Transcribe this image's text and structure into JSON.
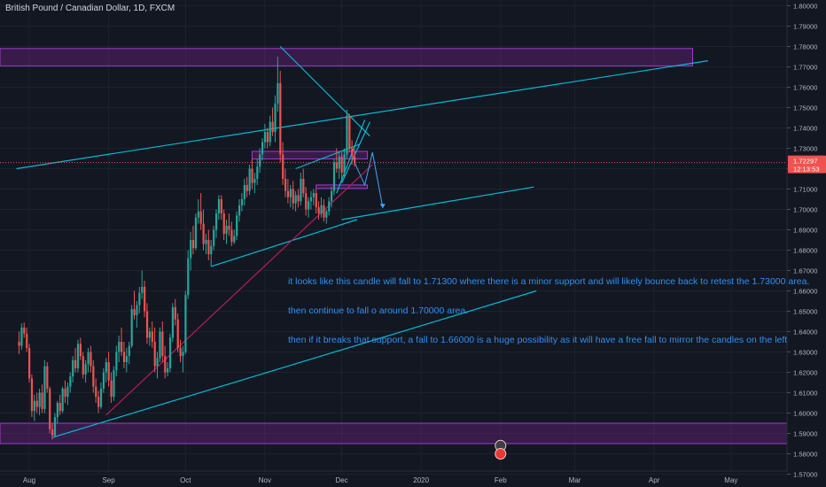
{
  "header": {
    "title": "British Pound / Canadian Dollar, 1D, FXCM"
  },
  "annotation": {
    "lines": [
      "it looks like this candle will fall to 1.71300 where there is a minor support and will likely bounce back to retest the 1.73000 area.",
      "then continue to fall o around 1.70000 area.",
      "then if it breaks that support, a fall to 1.66000 is a huge possibility as it will have a free fall to mirror the candles on the left"
    ]
  },
  "chart_data": {
    "type": "candlestick",
    "symbol": "British Pound / Canadian Dollar",
    "interval": "1D",
    "source": "FXCM",
    "ylim": [
      1.57,
      1.8
    ],
    "y_ticks": [
      "1.80000",
      "1.79000",
      "1.78000",
      "1.77000",
      "1.76000",
      "1.75000",
      "1.74000",
      "1.73000",
      "1.72000",
      "1.71000",
      "1.70000",
      "1.69000",
      "1.68000",
      "1.67000",
      "1.66000",
      "1.65000",
      "1.64000",
      "1.63000",
      "1.62000",
      "1.61000",
      "1.60000",
      "1.59000",
      "1.58000",
      "1.57000"
    ],
    "x_ticks": [
      "Aug",
      "Sep",
      "Oct",
      "Nov",
      "Dec",
      "2020",
      "Feb",
      "Mar",
      "Apr",
      "May"
    ],
    "x_tick_days": [
      0,
      31,
      61,
      92,
      122,
      153,
      184,
      213,
      244,
      274
    ],
    "last_price": "1.72297",
    "countdown": "12:13:53",
    "colors": {
      "up": "#26a69a",
      "down": "#ef5350",
      "trendline": "#00bcd4",
      "support": "#b71c5f",
      "zone": "#9c27b0",
      "arrow": "#42a5f5",
      "background": "#131722"
    },
    "candles": [
      [
        -4,
        1.635,
        1.64,
        1.629,
        1.633
      ],
      [
        -3,
        1.633,
        1.644,
        1.631,
        1.642
      ],
      [
        -2,
        1.642,
        1.6445,
        1.637,
        1.639
      ],
      [
        -1,
        1.639,
        1.642,
        1.63,
        1.632
      ],
      [
        0,
        1.632,
        1.634,
        1.615,
        1.617
      ],
      [
        1,
        1.617,
        1.619,
        1.598,
        1.601
      ],
      [
        2,
        1.601,
        1.609,
        1.596,
        1.606
      ],
      [
        3,
        1.606,
        1.61,
        1.6,
        1.603
      ],
      [
        4,
        1.603,
        1.612,
        1.599,
        1.61
      ],
      [
        5,
        1.61,
        1.614,
        1.6,
        1.602
      ],
      [
        6,
        1.602,
        1.626,
        1.6,
        1.623
      ],
      [
        7,
        1.623,
        1.625,
        1.61,
        1.612
      ],
      [
        8,
        1.612,
        1.613,
        1.59,
        1.592
      ],
      [
        9,
        1.592,
        1.595,
        1.587,
        1.589
      ],
      [
        10,
        1.589,
        1.6,
        1.588,
        1.598
      ],
      [
        11,
        1.598,
        1.606,
        1.595,
        1.605
      ],
      [
        12,
        1.605,
        1.609,
        1.599,
        1.601
      ],
      [
        13,
        1.601,
        1.613,
        1.6,
        1.612
      ],
      [
        14,
        1.612,
        1.616,
        1.605,
        1.608
      ],
      [
        15,
        1.608,
        1.615,
        1.604,
        1.613
      ],
      [
        16,
        1.613,
        1.62,
        1.61,
        1.618
      ],
      [
        17,
        1.618,
        1.628,
        1.615,
        1.626
      ],
      [
        18,
        1.626,
        1.632,
        1.62,
        1.622
      ],
      [
        19,
        1.622,
        1.636,
        1.62,
        1.634
      ],
      [
        20,
        1.634,
        1.637,
        1.626,
        1.628
      ],
      [
        21,
        1.628,
        1.63,
        1.617,
        1.619
      ],
      [
        22,
        1.619,
        1.626,
        1.615,
        1.624
      ],
      [
        23,
        1.624,
        1.632,
        1.62,
        1.63
      ],
      [
        24,
        1.63,
        1.633,
        1.62,
        1.623
      ],
      [
        25,
        1.623,
        1.626,
        1.61,
        1.613
      ],
      [
        26,
        1.613,
        1.617,
        1.605,
        1.608
      ],
      [
        27,
        1.608,
        1.611,
        1.6,
        1.603
      ],
      [
        28,
        1.603,
        1.615,
        1.602,
        1.612
      ],
      [
        29,
        1.612,
        1.622,
        1.61,
        1.62
      ],
      [
        30,
        1.62,
        1.627,
        1.615,
        1.625
      ],
      [
        31,
        1.625,
        1.63,
        1.613,
        1.616
      ],
      [
        32,
        1.616,
        1.62,
        1.605,
        1.608
      ],
      [
        33,
        1.608,
        1.623,
        1.606,
        1.621
      ],
      [
        34,
        1.621,
        1.633,
        1.618,
        1.63
      ],
      [
        35,
        1.63,
        1.638,
        1.625,
        1.635
      ],
      [
        36,
        1.635,
        1.642,
        1.628,
        1.63
      ],
      [
        37,
        1.63,
        1.635,
        1.622,
        1.625
      ],
      [
        38,
        1.625,
        1.632,
        1.62,
        1.628
      ],
      [
        39,
        1.628,
        1.635,
        1.624,
        1.633
      ],
      [
        40,
        1.633,
        1.653,
        1.632,
        1.651
      ],
      [
        41,
        1.651,
        1.66,
        1.646,
        1.648
      ],
      [
        42,
        1.648,
        1.655,
        1.642,
        1.653
      ],
      [
        43,
        1.653,
        1.662,
        1.649,
        1.659
      ],
      [
        44,
        1.659,
        1.67,
        1.656,
        1.662
      ],
      [
        45,
        1.662,
        1.665,
        1.647,
        1.65
      ],
      [
        46,
        1.65,
        1.654,
        1.634,
        1.637
      ],
      [
        47,
        1.637,
        1.642,
        1.633,
        1.64
      ],
      [
        48,
        1.64,
        1.645,
        1.632,
        1.635
      ],
      [
        49,
        1.635,
        1.642,
        1.62,
        1.623
      ],
      [
        50,
        1.623,
        1.63,
        1.617,
        1.627
      ],
      [
        51,
        1.627,
        1.642,
        1.625,
        1.64
      ],
      [
        52,
        1.64,
        1.645,
        1.625,
        1.628
      ],
      [
        53,
        1.628,
        1.633,
        1.617,
        1.62
      ],
      [
        54,
        1.62,
        1.625,
        1.618,
        1.622
      ],
      [
        55,
        1.622,
        1.639,
        1.62,
        1.637
      ],
      [
        56,
        1.637,
        1.654,
        1.635,
        1.652
      ],
      [
        57,
        1.652,
        1.656,
        1.643,
        1.646
      ],
      [
        58,
        1.646,
        1.649,
        1.63,
        1.632
      ],
      [
        59,
        1.632,
        1.636,
        1.625,
        1.628
      ],
      [
        60,
        1.628,
        1.633,
        1.62,
        1.63
      ],
      [
        61,
        1.63,
        1.66,
        1.629,
        1.658
      ],
      [
        62,
        1.658,
        1.68,
        1.656,
        1.676
      ],
      [
        63,
        1.676,
        1.689,
        1.67,
        1.685
      ],
      [
        64,
        1.685,
        1.692,
        1.678,
        1.681
      ],
      [
        65,
        1.681,
        1.698,
        1.68,
        1.696
      ],
      [
        66,
        1.696,
        1.705,
        1.693,
        1.699
      ],
      [
        67,
        1.699,
        1.708,
        1.69,
        1.693
      ],
      [
        68,
        1.693,
        1.7,
        1.68,
        1.683
      ],
      [
        69,
        1.683,
        1.688,
        1.678,
        1.685
      ],
      [
        70,
        1.685,
        1.69,
        1.675,
        1.678
      ],
      [
        71,
        1.678,
        1.685,
        1.672,
        1.682
      ],
      [
        72,
        1.682,
        1.692,
        1.68,
        1.69
      ],
      [
        73,
        1.69,
        1.7,
        1.686,
        1.698
      ],
      [
        74,
        1.698,
        1.707,
        1.695,
        1.705
      ],
      [
        75,
        1.705,
        1.707,
        1.695,
        1.698
      ],
      [
        76,
        1.698,
        1.7,
        1.685,
        1.688
      ],
      [
        77,
        1.688,
        1.695,
        1.683,
        1.692
      ],
      [
        78,
        1.692,
        1.698,
        1.687,
        1.69
      ],
      [
        79,
        1.69,
        1.694,
        1.682,
        1.684
      ],
      [
        80,
        1.684,
        1.69,
        1.683,
        1.687
      ],
      [
        81,
        1.687,
        1.699,
        1.685,
        1.697
      ],
      [
        82,
        1.697,
        1.705,
        1.694,
        1.702
      ],
      [
        83,
        1.702,
        1.708,
        1.699,
        1.705
      ],
      [
        84,
        1.705,
        1.715,
        1.702,
        1.712
      ],
      [
        85,
        1.712,
        1.716,
        1.706,
        1.709
      ],
      [
        86,
        1.709,
        1.722,
        1.707,
        1.72
      ],
      [
        87,
        1.72,
        1.725,
        1.71,
        1.713
      ],
      [
        88,
        1.713,
        1.718,
        1.708,
        1.715
      ],
      [
        89,
        1.715,
        1.725,
        1.712,
        1.721
      ],
      [
        90,
        1.721,
        1.73,
        1.718,
        1.727
      ],
      [
        91,
        1.727,
        1.735,
        1.724,
        1.733
      ],
      [
        92,
        1.733,
        1.742,
        1.73,
        1.738
      ],
      [
        93,
        1.738,
        1.74,
        1.73,
        1.733
      ],
      [
        94,
        1.733,
        1.746,
        1.731,
        1.743
      ],
      [
        95,
        1.743,
        1.75,
        1.736,
        1.738
      ],
      [
        96,
        1.738,
        1.756,
        1.733,
        1.752
      ],
      [
        97,
        1.752,
        1.775,
        1.748,
        1.762
      ],
      [
        98,
        1.762,
        1.768,
        1.723,
        1.727
      ],
      [
        99,
        1.727,
        1.733,
        1.712,
        1.715
      ],
      [
        100,
        1.715,
        1.72,
        1.706,
        1.709
      ],
      [
        101,
        1.709,
        1.715,
        1.703,
        1.706
      ],
      [
        102,
        1.706,
        1.712,
        1.701,
        1.71
      ],
      [
        103,
        1.71,
        1.714,
        1.7,
        1.703
      ],
      [
        104,
        1.703,
        1.709,
        1.699,
        1.707
      ],
      [
        105,
        1.707,
        1.71,
        1.701,
        1.704
      ],
      [
        106,
        1.704,
        1.718,
        1.702,
        1.715
      ],
      [
        107,
        1.715,
        1.72,
        1.706,
        1.708
      ],
      [
        108,
        1.708,
        1.711,
        1.697,
        1.7
      ],
      [
        109,
        1.7,
        1.706,
        1.696,
        1.704
      ],
      [
        110,
        1.704,
        1.709,
        1.7,
        1.706
      ],
      [
        111,
        1.706,
        1.71,
        1.702,
        1.708
      ],
      [
        112,
        1.708,
        1.71,
        1.698,
        1.701
      ],
      [
        113,
        1.701,
        1.704,
        1.695,
        1.698
      ],
      [
        114,
        1.698,
        1.706,
        1.696,
        1.702
      ],
      [
        115,
        1.702,
        1.705,
        1.694,
        1.696
      ],
      [
        116,
        1.696,
        1.7,
        1.693,
        1.699
      ],
      [
        117,
        1.699,
        1.706,
        1.697,
        1.704
      ],
      [
        118,
        1.704,
        1.711,
        1.701,
        1.709
      ],
      [
        119,
        1.709,
        1.725,
        1.707,
        1.723
      ],
      [
        120,
        1.723,
        1.73,
        1.718,
        1.72
      ],
      [
        121,
        1.72,
        1.728,
        1.715,
        1.726
      ],
      [
        122,
        1.726,
        1.728,
        1.715,
        1.718
      ],
      [
        123,
        1.718,
        1.73,
        1.716,
        1.727
      ],
      [
        124,
        1.727,
        1.749,
        1.725,
        1.746
      ],
      [
        125,
        1.746,
        1.747,
        1.728,
        1.73
      ],
      [
        126,
        1.73,
        1.734,
        1.722,
        1.726
      ],
      [
        127,
        1.726,
        1.73,
        1.721,
        1.723
      ]
    ],
    "drawings": {
      "zones": [
        {
          "from_day": -200,
          "to_day": 259,
          "top": 1.779,
          "bottom": 1.7705
        },
        {
          "from_day": -200,
          "to_day": 320,
          "top": 1.595,
          "bottom": 1.585
        },
        {
          "from_day": 87,
          "to_day": 132,
          "top": 1.7285,
          "bottom": 1.7248
        },
        {
          "from_day": 112,
          "to_day": 132,
          "top": 1.712,
          "bottom": 1.7103
        }
      ],
      "trendlines": [
        {
          "x1": -5,
          "y1": 1.72,
          "x2": 265,
          "y2": 1.773,
          "color": "trendline"
        },
        {
          "x1": 71,
          "y1": 1.672,
          "x2": 128,
          "y2": 1.695,
          "color": "trendline"
        },
        {
          "x1": 122,
          "y1": 1.695,
          "x2": 197,
          "y2": 1.711,
          "color": "trendline"
        },
        {
          "x1": 9,
          "y1": 1.588,
          "x2": 198,
          "y2": 1.66,
          "color": "trendline"
        },
        {
          "x1": 98,
          "y1": 1.78,
          "x2": 133,
          "y2": 1.736,
          "color": "trendline"
        },
        {
          "x1": 104,
          "y1": 1.72,
          "x2": 129,
          "y2": 1.732,
          "color": "trendline"
        },
        {
          "x1": 120,
          "y1": 1.708,
          "x2": 131,
          "y2": 1.744,
          "color": "trendline"
        },
        {
          "x1": 122,
          "y1": 1.713,
          "x2": 133,
          "y2": 1.743,
          "color": "trendline"
        },
        {
          "x1": 30,
          "y1": 1.599,
          "x2": 134,
          "y2": 1.722,
          "color": "support"
        }
      ],
      "forecast_path": [
        [
          127,
          1.723
        ],
        [
          131,
          1.712
        ],
        [
          134,
          1.728
        ],
        [
          138,
          1.701
        ]
      ]
    },
    "event_markers": [
      {
        "day": 184,
        "price": 1.584
      },
      {
        "day": 184,
        "price": 1.58
      }
    ]
  }
}
